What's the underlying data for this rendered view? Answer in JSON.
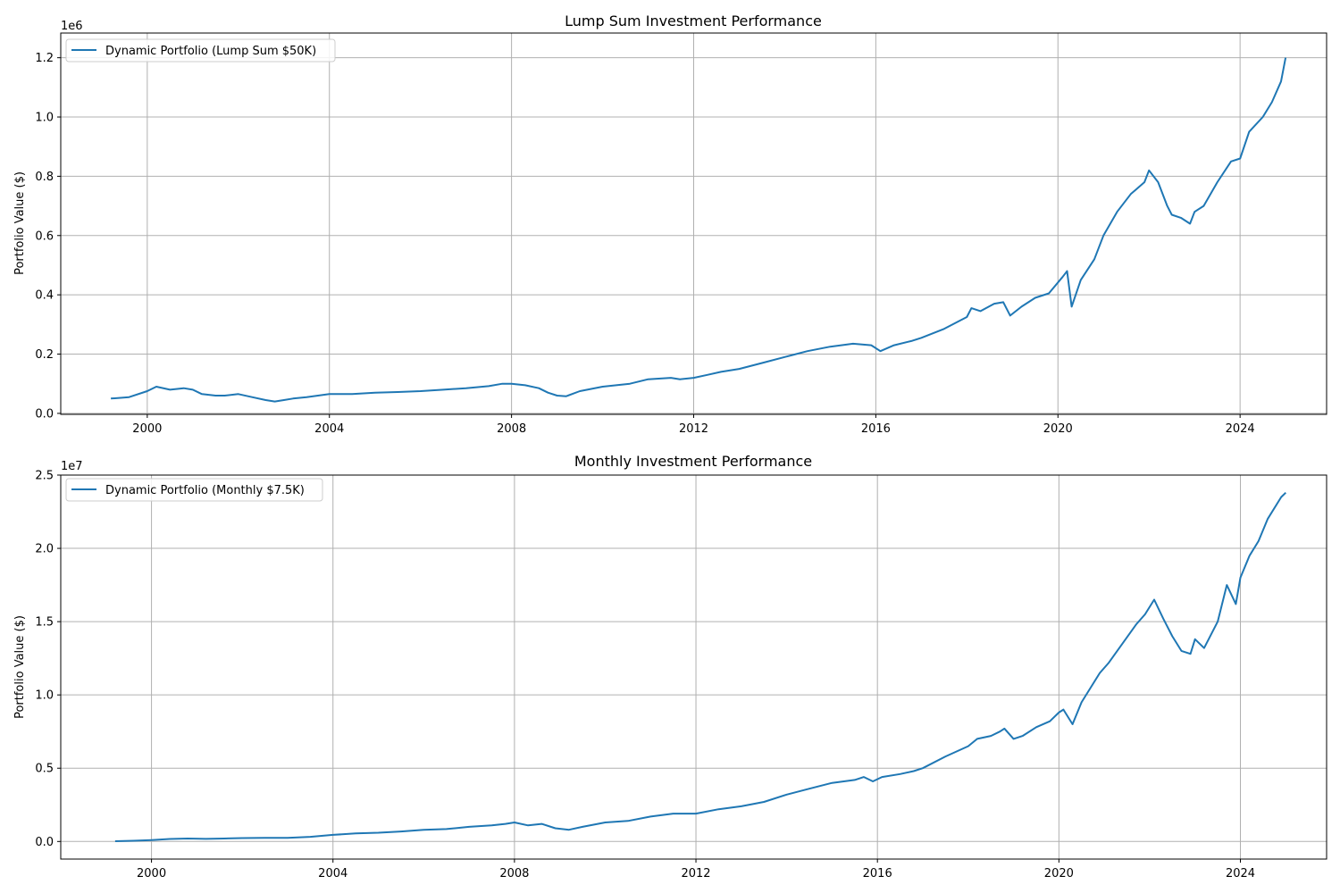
{
  "chart_data": [
    {
      "type": "line",
      "title": "Lump Sum Investment Performance",
      "xlabel": "",
      "ylabel": "Portfolio Value ($)",
      "y_multiplier_label": "1e6",
      "xlim": [
        1998.1,
        2025.9
      ],
      "ylim": [
        -0.0033,
        1.2833
      ],
      "xticks": [
        2000,
        2004,
        2008,
        2012,
        2016,
        2020,
        2024
      ],
      "xtick_labels": [
        "2000",
        "2004",
        "2008",
        "2012",
        "2016",
        "2020",
        "2024"
      ],
      "yticks": [
        0.0,
        0.2,
        0.4,
        0.6,
        0.8,
        1.0,
        1.2
      ],
      "ytick_labels": [
        "0.0",
        "0.2",
        "0.4",
        "0.6",
        "0.8",
        "1.0",
        "1.2"
      ],
      "grid": true,
      "legend_position": "upper-left",
      "color": "#1f77b4",
      "series": [
        {
          "name": "Dynamic Portfolio (Lump Sum $50K)",
          "x": [
            1999.2,
            1999.6,
            2000.0,
            2000.2,
            2000.5,
            2000.8,
            2001.0,
            2001.2,
            2001.5,
            2001.7,
            2002.0,
            2002.3,
            2002.6,
            2002.8,
            2003.0,
            2003.2,
            2003.5,
            2004.0,
            2004.5,
            2005.0,
            2005.5,
            2006.0,
            2006.5,
            2007.0,
            2007.5,
            2007.8,
            2008.0,
            2008.3,
            2008.6,
            2008.8,
            2009.0,
            2009.2,
            2009.5,
            2010.0,
            2010.3,
            2010.6,
            2011.0,
            2011.5,
            2011.7,
            2012.0,
            2012.3,
            2012.6,
            2013.0,
            2013.5,
            2014.0,
            2014.5,
            2015.0,
            2015.5,
            2015.9,
            2016.1,
            2016.4,
            2016.8,
            2017.0,
            2017.5,
            2018.0,
            2018.1,
            2018.3,
            2018.6,
            2018.8,
            2018.95,
            2019.2,
            2019.5,
            2019.8,
            2020.1,
            2020.2,
            2020.3,
            2020.5,
            2020.8,
            2021.0,
            2021.3,
            2021.6,
            2021.9,
            2022.0,
            2022.2,
            2022.4,
            2022.5,
            2022.7,
            2022.9,
            2023.0,
            2023.2,
            2023.5,
            2023.8,
            2024.0,
            2024.2,
            2024.5,
            2024.7,
            2024.9,
            2025.0
          ],
          "values": [
            0.05,
            0.055,
            0.075,
            0.09,
            0.08,
            0.085,
            0.08,
            0.065,
            0.06,
            0.06,
            0.065,
            0.055,
            0.045,
            0.04,
            0.045,
            0.05,
            0.055,
            0.065,
            0.065,
            0.07,
            0.072,
            0.075,
            0.08,
            0.085,
            0.092,
            0.1,
            0.1,
            0.095,
            0.085,
            0.07,
            0.06,
            0.058,
            0.075,
            0.09,
            0.095,
            0.1,
            0.115,
            0.12,
            0.115,
            0.12,
            0.13,
            0.14,
            0.15,
            0.17,
            0.19,
            0.21,
            0.225,
            0.235,
            0.23,
            0.21,
            0.23,
            0.245,
            0.255,
            0.285,
            0.325,
            0.355,
            0.345,
            0.37,
            0.375,
            0.33,
            0.36,
            0.39,
            0.405,
            0.46,
            0.48,
            0.36,
            0.45,
            0.52,
            0.6,
            0.68,
            0.74,
            0.78,
            0.82,
            0.78,
            0.7,
            0.67,
            0.66,
            0.64,
            0.68,
            0.7,
            0.78,
            0.85,
            0.86,
            0.95,
            1.0,
            1.05,
            1.12,
            1.2
          ]
        }
      ]
    },
    {
      "type": "line",
      "title": "Monthly Investment Performance",
      "xlabel": "",
      "ylabel": "Portfolio Value ($)",
      "y_multiplier_label": "1e7",
      "xlim": [
        1998.0,
        2025.9
      ],
      "ylim": [
        -0.12,
        2.5
      ],
      "xticks": [
        2000,
        2004,
        2008,
        2012,
        2016,
        2020,
        2024
      ],
      "xtick_labels": [
        "2000",
        "2004",
        "2008",
        "2012",
        "2016",
        "2020",
        "2024"
      ],
      "yticks": [
        0.0,
        0.5,
        1.0,
        1.5,
        2.0,
        2.5
      ],
      "ytick_labels": [
        "0.0",
        "0.5",
        "1.0",
        "1.5",
        "2.0",
        "2.5"
      ],
      "grid": true,
      "legend_position": "upper-left",
      "color": "#1f77b4",
      "series": [
        {
          "name": "Dynamic Portfolio (Monthly $7.5K)",
          "x": [
            1999.2,
            1999.6,
            2000.0,
            2000.4,
            2000.8,
            2001.2,
            2001.6,
            2002.0,
            2002.5,
            2003.0,
            2003.5,
            2004.0,
            2004.5,
            2005.0,
            2005.5,
            2006.0,
            2006.5,
            2007.0,
            2007.5,
            2007.8,
            2008.0,
            2008.3,
            2008.6,
            2008.9,
            2009.2,
            2009.5,
            2010.0,
            2010.5,
            2011.0,
            2011.5,
            2011.8,
            2012.0,
            2012.5,
            2013.0,
            2013.5,
            2014.0,
            2014.5,
            2015.0,
            2015.5,
            2015.7,
            2015.9,
            2016.1,
            2016.5,
            2016.8,
            2017.0,
            2017.5,
            2018.0,
            2018.2,
            2018.5,
            2018.7,
            2018.8,
            2019.0,
            2019.2,
            2019.5,
            2019.8,
            2020.0,
            2020.1,
            2020.3,
            2020.5,
            2020.7,
            2020.9,
            2021.1,
            2021.4,
            2021.7,
            2021.9,
            2022.1,
            2022.3,
            2022.5,
            2022.7,
            2022.9,
            2023.0,
            2023.2,
            2023.5,
            2023.7,
            2023.9,
            2024.0,
            2024.2,
            2024.4,
            2024.6,
            2024.9,
            2025.0
          ],
          "values": [
            0.002,
            0.005,
            0.01,
            0.017,
            0.02,
            0.018,
            0.02,
            0.023,
            0.025,
            0.025,
            0.032,
            0.045,
            0.055,
            0.06,
            0.068,
            0.08,
            0.085,
            0.1,
            0.11,
            0.12,
            0.13,
            0.11,
            0.12,
            0.09,
            0.08,
            0.1,
            0.13,
            0.14,
            0.17,
            0.19,
            0.19,
            0.19,
            0.22,
            0.24,
            0.27,
            0.32,
            0.36,
            0.4,
            0.42,
            0.44,
            0.41,
            0.44,
            0.46,
            0.48,
            0.5,
            0.58,
            0.65,
            0.7,
            0.72,
            0.75,
            0.77,
            0.7,
            0.72,
            0.78,
            0.82,
            0.88,
            0.9,
            0.8,
            0.95,
            1.05,
            1.15,
            1.22,
            1.35,
            1.48,
            1.55,
            1.65,
            1.52,
            1.4,
            1.3,
            1.28,
            1.38,
            1.32,
            1.5,
            1.75,
            1.62,
            1.8,
            1.95,
            2.05,
            2.2,
            2.35,
            2.38
          ]
        }
      ]
    }
  ]
}
